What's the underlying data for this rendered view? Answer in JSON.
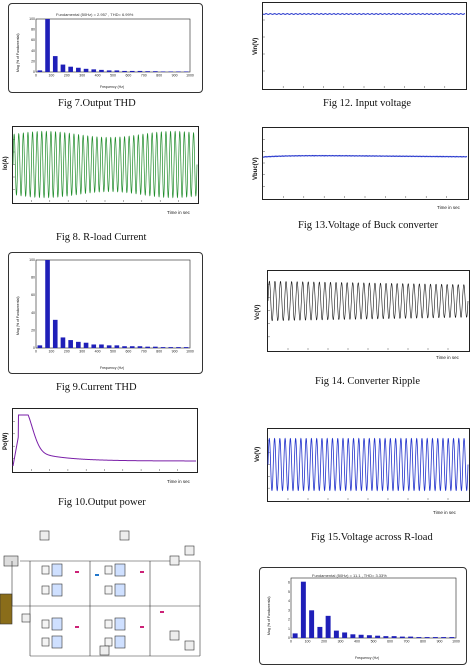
{
  "captions": {
    "fig7": "Fig 7.Output THD",
    "fig8": "Fig 8. R-load Current",
    "fig9": "Fig 9.Current THD",
    "fig10": "Fig 10.Output power",
    "fig12": "Fig 12. Input voltage",
    "fig13": "Fig 13.Voltage of Buck converter",
    "fig14": "Fig 14. Converter Ripple",
    "fig15": "Fig 15.Voltage across R-load"
  },
  "fft_panels": {
    "fig7": {
      "title": "Fundamental (50Hz) = 2.957 , THD= 6.99%",
      "note": "FFT analysis",
      "xlabel": "Frequency (Hz)",
      "ylabel": "Mag (% of Fundamental)"
    },
    "fig9": {
      "title": "Fundamental (50Hz) = 12.65 , THD= 6.99%",
      "note": "FFT analysis",
      "xlabel": "Frequency (Hz)",
      "ylabel": "Mag (% of Fundamental)"
    },
    "fig16": {
      "title": "Fundamental (50Hz) = 11.1 , THD= 3.33%",
      "note": "FFT analysis",
      "xlabel": "Frequency (Hz)",
      "ylabel": "Mag (% of Fundamental)"
    }
  },
  "time_panels": {
    "fig8": {
      "ylabel": "Io(A)",
      "time_label": "Time in sec"
    },
    "fig10": {
      "ylabel": "Po(W)",
      "time_label": "Time in sec"
    },
    "fig12": {
      "ylabel": "Vin(V)",
      "time_label": "Time in sec"
    },
    "fig13": {
      "ylabel": "Vbuc(V)",
      "time_label": "Time in sec"
    },
    "fig14": {
      "ylabel": "Vc(V)",
      "time_label": "Time in sec"
    },
    "fig15": {
      "ylabel": "Vo(V)",
      "time_label": "Time in sec"
    }
  },
  "colors": {
    "bar": "#1f1fb8",
    "green": "#1f8c2a",
    "purple": "#7a1fa8",
    "blue": "#2233cc",
    "black": "#111111"
  },
  "chart_data": [
    {
      "id": "fig7",
      "type": "bar",
      "title": "Fundamental (50Hz) = 2.957 , THD= 6.99%",
      "xlabel": "Frequency (Hz)",
      "ylabel": "Mag (% of Fundamental)",
      "x_ticks": [
        "0",
        "100",
        "200",
        "300",
        "400",
        "500",
        "600",
        "700",
        "800",
        "900",
        "1000"
      ],
      "y_ticks": [
        "0",
        "20",
        "40",
        "60",
        "80",
        "100"
      ],
      "ylim": [
        0,
        100
      ],
      "values": [
        3,
        100,
        30,
        14,
        10,
        8,
        6,
        5,
        4,
        3,
        3,
        2,
        2,
        2,
        1.5,
        1.5,
        1,
        1,
        1,
        1
      ]
    },
    {
      "id": "fig9",
      "type": "bar",
      "title": "Fundamental (50Hz) = 12.65 , THD= 6.99%",
      "xlabel": "Frequency (Hz)",
      "ylabel": "Mag (% of Fundamental)",
      "x_ticks": [
        "0",
        "100",
        "200",
        "300",
        "400",
        "500",
        "600",
        "700",
        "800",
        "900",
        "1000"
      ],
      "y_ticks": [
        "0",
        "20",
        "40",
        "60",
        "80",
        "100"
      ],
      "ylim": [
        0,
        100
      ],
      "values": [
        3,
        100,
        32,
        12,
        9,
        7,
        6,
        4,
        4,
        3,
        3,
        2,
        2,
        2,
        1.5,
        1.5,
        1,
        1,
        1,
        1
      ]
    },
    {
      "id": "fig16",
      "type": "bar",
      "title": "Fundamental (50Hz) = 11.1 , THD= 3.33%",
      "xlabel": "Frequency (Hz)",
      "ylabel": "Mag (% of Fundamental)",
      "x_ticks": [
        "0",
        "100",
        "200",
        "300",
        "400",
        "500",
        "600",
        "700",
        "800",
        "900",
        "1000"
      ],
      "y_ticks": [
        "0",
        "1",
        "2",
        "3",
        "4",
        "5",
        "6"
      ],
      "ylim": [
        0,
        6.5
      ],
      "values": [
        0.5,
        6.1,
        3.0,
        1.2,
        2.4,
        0.8,
        0.6,
        0.4,
        0.35,
        0.3,
        0.25,
        0.2,
        0.2,
        0.15,
        0.15,
        0.1,
        0.1,
        0.1,
        0.1,
        0.1
      ]
    }
  ]
}
